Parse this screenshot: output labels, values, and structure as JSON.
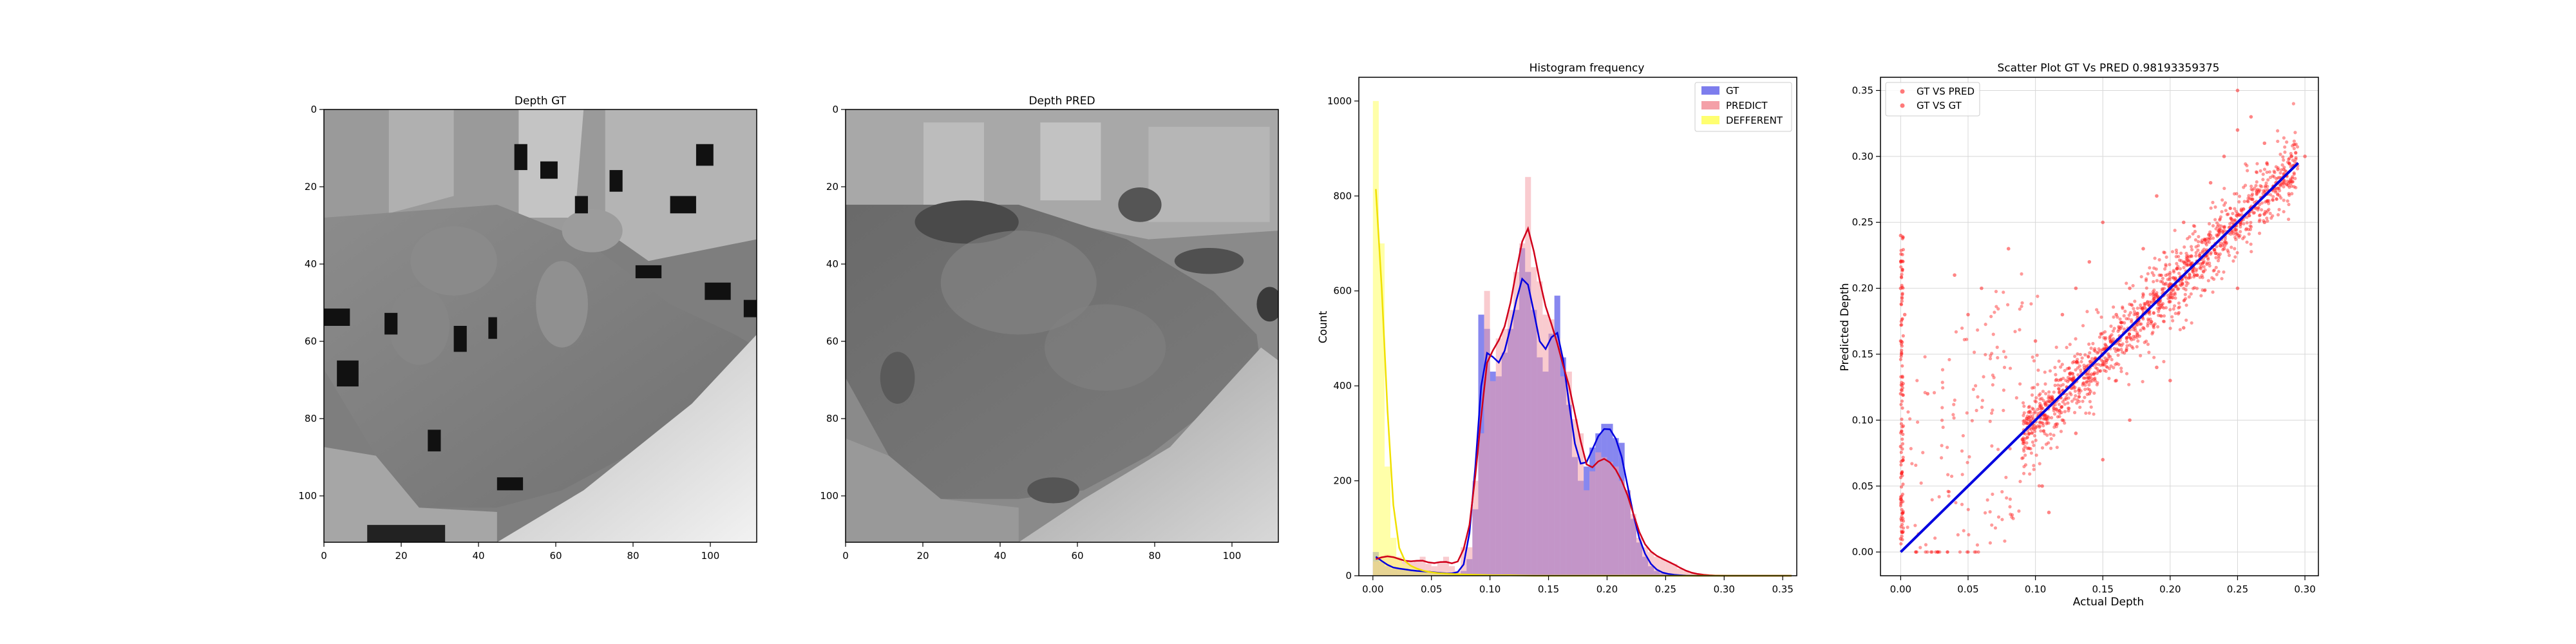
{
  "chart_data": [
    {
      "type": "heatmap",
      "title": "Depth GT",
      "xticks": [
        "0",
        "20",
        "40",
        "60",
        "80",
        "100"
      ],
      "yticks": [
        "0",
        "20",
        "40",
        "60",
        "80",
        "100"
      ],
      "xlim": [
        0,
        112
      ],
      "ylim": [
        112,
        0
      ]
    },
    {
      "type": "heatmap",
      "title": "Depth PRED",
      "xticks": [
        "0",
        "20",
        "40",
        "60",
        "80",
        "100"
      ],
      "yticks": [
        "0",
        "20",
        "40",
        "60",
        "80",
        "100"
      ],
      "xlim": [
        0,
        112
      ],
      "ylim": [
        112,
        0
      ]
    },
    {
      "type": "bar",
      "title": "Histogram frequency",
      "ylabel": "Count",
      "xlabel": "",
      "xlim": [
        -0.012,
        0.362
      ],
      "ylim": [
        0,
        1050
      ],
      "xticks": [
        "0.00",
        "0.05",
        "0.10",
        "0.15",
        "0.20",
        "0.25",
        "0.30",
        "0.35"
      ],
      "yticks": [
        "0",
        "200",
        "400",
        "600",
        "800",
        "1000"
      ],
      "legend": {
        "placement": "top-right",
        "entries": [
          "GT",
          "PREDICT",
          "DEFFERENT"
        ]
      },
      "series": [
        {
          "name": "GT",
          "color": "#4646e6",
          "bin_width": 0.005,
          "x0": 0.0,
          "values": [
            50,
            30,
            20,
            15,
            15,
            15,
            10,
            10,
            10,
            8,
            8,
            5,
            5,
            5,
            3,
            10,
            35,
            140,
            550,
            520,
            430,
            420,
            470,
            520,
            560,
            690,
            640,
            560,
            460,
            430,
            510,
            590,
            460,
            360,
            250,
            200,
            230,
            270,
            300,
            320,
            320,
            290,
            280,
            180,
            120,
            70,
            40,
            20,
            10,
            5,
            3,
            2,
            1,
            0,
            0,
            0,
            0,
            0,
            0,
            0,
            0,
            0,
            0,
            0,
            0,
            0,
            0,
            0,
            0,
            0,
            0,
            0
          ]
        },
        {
          "name": "PREDICT",
          "color": "#f4a0a8",
          "bin_width": 0.005,
          "x0": 0.0,
          "values": [
            30,
            40,
            45,
            40,
            35,
            30,
            28,
            30,
            40,
            25,
            20,
            30,
            40,
            20,
            10,
            60,
            60,
            200,
            300,
            600,
            410,
            500,
            520,
            560,
            640,
            700,
            840,
            650,
            620,
            550,
            540,
            500,
            420,
            430,
            330,
            300,
            180,
            220,
            260,
            250,
            240,
            230,
            200,
            180,
            130,
            80,
            60,
            50,
            40,
            35,
            30,
            25,
            15,
            10,
            5,
            3,
            2,
            1,
            0,
            0,
            0,
            0,
            0,
            0,
            0,
            0,
            0,
            0,
            0,
            0,
            0,
            0
          ]
        },
        {
          "name": "DEFFERENT",
          "color": "#ffff70",
          "bin_width": 0.005,
          "x0": 0.0,
          "values": [
            1000,
            700,
            230,
            80,
            40,
            25,
            20,
            15,
            10,
            8,
            6,
            5,
            4,
            4,
            3,
            3,
            2,
            2,
            2,
            1,
            1,
            1,
            1,
            1,
            1,
            0,
            0,
            0,
            0,
            0,
            0,
            0,
            0,
            0,
            0,
            0,
            0,
            0,
            0,
            0,
            0,
            0,
            0,
            0,
            0,
            0,
            0,
            0,
            0,
            0,
            0,
            0,
            0,
            0,
            0,
            0,
            0,
            0,
            0,
            0,
            0,
            0,
            0,
            0,
            0,
            0,
            0,
            0,
            0,
            0,
            0,
            0
          ]
        }
      ]
    },
    {
      "type": "scatter",
      "title": "Scatter Plot GT Vs PRED 0.98193359375",
      "xlabel": "Actual Depth",
      "ylabel": "Predicted Depth",
      "xlim": [
        -0.015,
        0.31
      ],
      "ylim": [
        -0.018,
        0.36
      ],
      "xticks": [
        "0.00",
        "0.05",
        "0.10",
        "0.15",
        "0.20",
        "0.25",
        "0.30"
      ],
      "yticks": [
        "0.00",
        "0.05",
        "0.10",
        "0.15",
        "0.20",
        "0.25",
        "0.30",
        "0.35"
      ],
      "grid": true,
      "legend": {
        "placement": "top-left",
        "entries": [
          "GT VS PRED",
          "GT VS GT"
        ]
      },
      "series": [
        {
          "name": "GT VS PRED",
          "color": "#ff2020",
          "points": [
            [
              0.0,
              0.24
            ],
            [
              0.0,
              0.2
            ],
            [
              0.0,
              0.16
            ],
            [
              0.0,
              0.12
            ],
            [
              0.0,
              0.08
            ],
            [
              0.0,
              0.04
            ],
            [
              0.0,
              0.01
            ],
            [
              0.003,
              0.18
            ],
            [
              0.02,
              0.12
            ],
            [
              0.04,
              0.21
            ],
            [
              0.05,
              0.18
            ],
            [
              0.06,
              0.2
            ],
            [
              0.08,
              0.23
            ],
            [
              0.1,
              0.16
            ],
            [
              0.105,
              0.05
            ],
            [
              0.11,
              0.03
            ],
            [
              0.12,
              0.18
            ],
            [
              0.12,
              0.1
            ],
            [
              0.13,
              0.2
            ],
            [
              0.13,
              0.09
            ],
            [
              0.14,
              0.22
            ],
            [
              0.14,
              0.12
            ],
            [
              0.15,
              0.25
            ],
            [
              0.15,
              0.15
            ],
            [
              0.15,
              0.07
            ],
            [
              0.16,
              0.13
            ],
            [
              0.16,
              0.18
            ],
            [
              0.17,
              0.2
            ],
            [
              0.17,
              0.1
            ],
            [
              0.18,
              0.17
            ],
            [
              0.18,
              0.23
            ],
            [
              0.19,
              0.14
            ],
            [
              0.19,
              0.27
            ],
            [
              0.2,
              0.2
            ],
            [
              0.2,
              0.13
            ],
            [
              0.21,
              0.25
            ],
            [
              0.21,
              0.17
            ],
            [
              0.22,
              0.21
            ],
            [
              0.23,
              0.24
            ],
            [
              0.23,
              0.28
            ],
            [
              0.24,
              0.23
            ],
            [
              0.24,
              0.3
            ],
            [
              0.25,
              0.35
            ],
            [
              0.25,
              0.32
            ],
            [
              0.25,
              0.2
            ],
            [
              0.26,
              0.33
            ],
            [
              0.26,
              0.26
            ],
            [
              0.27,
              0.31
            ],
            [
              0.27,
              0.25
            ],
            [
              0.28,
              0.29
            ],
            [
              0.29,
              0.3
            ],
            [
              0.3,
              0.3
            ]
          ]
        },
        {
          "name": "GT VS GT",
          "color": "#0000e0",
          "points": [
            [
              0.0,
              0.0
            ],
            [
              0.295,
              0.295
            ]
          ]
        }
      ]
    }
  ]
}
